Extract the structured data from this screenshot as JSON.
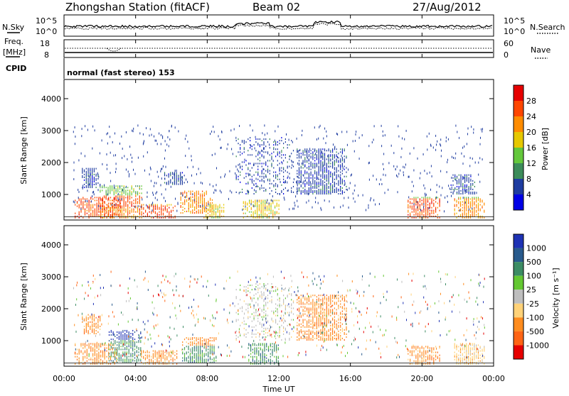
{
  "header": {
    "station": "Zhongshan Station (fitACF)",
    "beam": "Beam 02",
    "date": "27/Aug/2012"
  },
  "top_panel": {
    "left_label": "N.Sky",
    "right_label": "N.Search",
    "left_ticks": [
      "10^5",
      "10^0"
    ],
    "right_ticks": [
      "10^5",
      "10^0"
    ]
  },
  "freq_panel": {
    "left_label_1": "Freq.",
    "left_label_2": "[MHz]",
    "right_label": "Nave",
    "left_ticks": [
      "18",
      "8"
    ],
    "right_ticks": [
      "60",
      "0"
    ]
  },
  "cpid": {
    "label": "CPID",
    "text": "normal (fast stereo) 153"
  },
  "colors": {
    "power": [
      "#0000e6",
      "#1e3ca0",
      "#3c8c5a",
      "#64c83c",
      "#e6c800",
      "#ff8c00",
      "#ff4600",
      "#e60000"
    ],
    "velocity": [
      "#1e32b4",
      "#285a8c",
      "#3c8c64",
      "#64c832",
      "#bebebe",
      "#ffd278",
      "#ff8c1e",
      "#ff6414",
      "#e60000"
    ]
  },
  "chart_data": [
    {
      "type": "heatmap",
      "ylabel": "Slant Range [km]",
      "yticks": [
        "1000",
        "2000",
        "3000",
        "4000"
      ],
      "ylim": [
        200,
        4600
      ],
      "xlim": [
        0,
        24
      ],
      "colorbar": {
        "label": "Power [dB]",
        "ticks": [
          "4",
          "8",
          "12",
          "16",
          "20",
          "24",
          "28"
        ]
      },
      "regions": [
        {
          "x0": 0.6,
          "x1": 3.2,
          "y0": 250,
          "y1": 900,
          "bands": [
            [
              0,
              700,
              6
            ],
            [
              700,
              900,
              3
            ]
          ]
        },
        {
          "x0": 2.0,
          "x1": 4.4,
          "y0": 250,
          "y1": 1250,
          "bands": [
            [
              0,
              350,
              5
            ],
            [
              350,
              700,
              6
            ],
            [
              700,
              1250,
              3
            ]
          ]
        },
        {
          "x0": 4.2,
          "x1": 6.2,
          "y0": 250,
          "y1": 700,
          "bands": [
            [
              0,
              400,
              6
            ],
            [
              400,
              700,
              4
            ]
          ]
        },
        {
          "x0": 6.5,
          "x1": 8.3,
          "y0": 400,
          "y1": 1100,
          "bands": [
            [
              0,
              1100,
              5
            ]
          ]
        },
        {
          "x0": 7.8,
          "x1": 9.0,
          "y0": 250,
          "y1": 700,
          "bands": [
            [
              0,
              700,
              4
            ]
          ]
        },
        {
          "x0": 10.0,
          "x1": 12.0,
          "y0": 250,
          "y1": 800,
          "bands": [
            [
              0,
              800,
              4
            ]
          ]
        },
        {
          "x0": 19.2,
          "x1": 21.0,
          "y0": 250,
          "y1": 900,
          "bands": [
            [
              0,
              600,
              6
            ],
            [
              600,
              900,
              3
            ]
          ]
        },
        {
          "x0": 21.8,
          "x1": 23.5,
          "y0": 250,
          "y1": 900,
          "bands": [
            [
              0,
              600,
              5
            ],
            [
              600,
              900,
              3
            ]
          ]
        },
        {
          "x0": 1.0,
          "x1": 2.0,
          "y0": 1200,
          "y1": 1800,
          "bands": [
            [
              0,
              1800,
              1
            ]
          ]
        },
        {
          "x0": 5.6,
          "x1": 6.8,
          "y0": 1300,
          "y1": 1700,
          "bands": [
            [
              0,
              1700,
              1
            ]
          ]
        },
        {
          "x0": 9.6,
          "x1": 12.8,
          "y0": 1000,
          "y1": 2800,
          "bands": [
            [
              0,
              2800,
              1
            ]
          ]
        },
        {
          "x0": 13.0,
          "x1": 15.8,
          "y0": 1000,
          "y1": 2400,
          "bands": [
            [
              0,
              2400,
              1
            ]
          ]
        },
        {
          "x0": 21.6,
          "x1": 23.0,
          "y0": 1000,
          "y1": 1600,
          "bands": [
            [
              0,
              1600,
              1
            ]
          ]
        }
      ]
    },
    {
      "type": "heatmap",
      "ylabel": "Slant Range [km]",
      "yticks": [
        "1000",
        "2000",
        "3000",
        "4000"
      ],
      "ylim": [
        200,
        4600
      ],
      "xlim": [
        0,
        24
      ],
      "xlabel": "Time UT",
      "xticks": [
        "00:00",
        "04:00",
        "08:00",
        "12:00",
        "16:00",
        "20:00",
        "00:00"
      ],
      "colorbar": {
        "label": "Velocity [m s⁻¹]",
        "ticks": [
          "1000",
          "500",
          "100",
          "25",
          "-25",
          "-100",
          "-500",
          "-1000"
        ]
      },
      "regions": [
        {
          "x0": 0.6,
          "x1": 3.0,
          "y0": 250,
          "y1": 900,
          "bands": [
            [
              0,
              900,
              6
            ]
          ]
        },
        {
          "x0": 2.5,
          "x1": 4.3,
          "y0": 300,
          "y1": 1300,
          "bands": [
            [
              0,
              700,
              2
            ],
            [
              700,
              1300,
              0
            ]
          ]
        },
        {
          "x0": 4.3,
          "x1": 6.3,
          "y0": 250,
          "y1": 700,
          "bands": [
            [
              0,
              700,
              6
            ]
          ]
        },
        {
          "x0": 6.6,
          "x1": 8.5,
          "y0": 300,
          "y1": 1100,
          "bands": [
            [
              0,
              500,
              2
            ],
            [
              500,
              1100,
              6
            ]
          ]
        },
        {
          "x0": 10.3,
          "x1": 12.0,
          "y0": 250,
          "y1": 900,
          "bands": [
            [
              0,
              900,
              2
            ]
          ]
        },
        {
          "x0": 19.2,
          "x1": 21.0,
          "y0": 250,
          "y1": 800,
          "bands": [
            [
              0,
              800,
              6
            ]
          ]
        },
        {
          "x0": 21.8,
          "x1": 23.5,
          "y0": 250,
          "y1": 900,
          "bands": [
            [
              0,
              900,
              5
            ]
          ]
        },
        {
          "x0": 9.6,
          "x1": 12.8,
          "y0": 1000,
          "y1": 2800,
          "bands": [
            [
              0,
              2800,
              4
            ]
          ]
        },
        {
          "x0": 1.0,
          "x1": 2.0,
          "y0": 1200,
          "y1": 1800,
          "bands": [
            [
              0,
              1800,
              6
            ]
          ]
        },
        {
          "x0": 13.0,
          "x1": 15.8,
          "y0": 1000,
          "y1": 2400,
          "bands": [
            [
              0,
              2400,
              6
            ]
          ]
        }
      ]
    }
  ]
}
